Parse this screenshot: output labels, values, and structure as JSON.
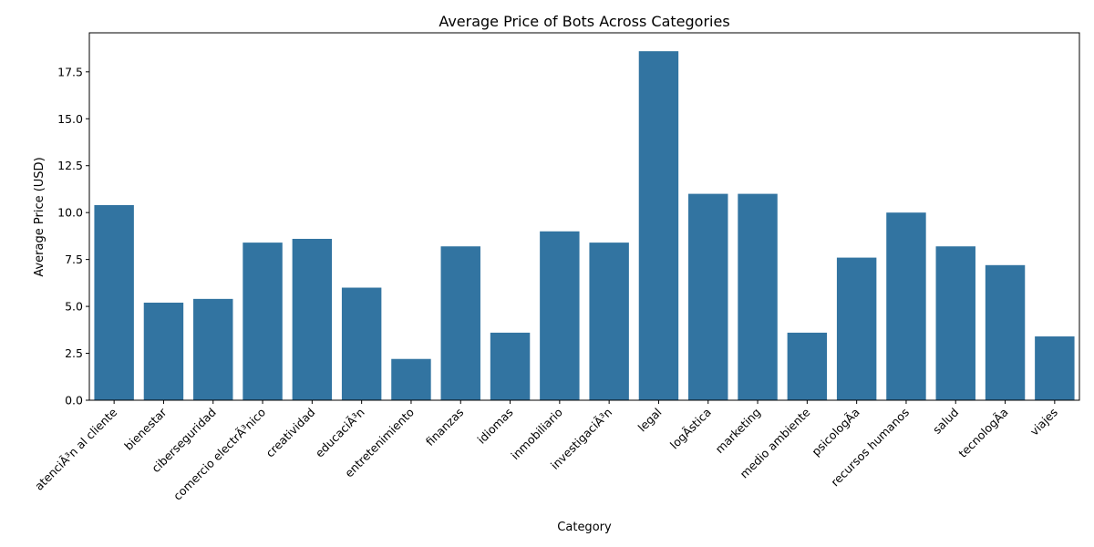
{
  "chart_data": {
    "type": "bar",
    "title": "Average Price of Bots Across Categories",
    "xlabel": "Category",
    "ylabel": "Average Price (USD)",
    "ylim": [
      0,
      19.58
    ],
    "yticks": [
      "0.0",
      "2.5",
      "5.0",
      "7.5",
      "10.0",
      "12.5",
      "15.0",
      "17.5"
    ],
    "grid": false,
    "bar_color": "#3274a1",
    "categories": [
      "atenciÃ³n al cliente",
      "bienestar",
      "ciberseguridad",
      "comercio electrÃ³nico",
      "creatividad",
      "educaciÃ³n",
      "entretenimiento",
      "finanzas",
      "idiomas",
      "inmobiliario",
      "investigaciÃ³n",
      "legal",
      "logÃ­stica",
      "marketing",
      "medio ambiente",
      "psicologÃ­a",
      "recursos humanos",
      "salud",
      "tecnologÃ­a",
      "viajes"
    ],
    "values": [
      10.4,
      5.2,
      5.4,
      8.4,
      8.6,
      6.0,
      2.2,
      8.2,
      3.6,
      9.0,
      8.4,
      18.6,
      11.0,
      11.0,
      3.6,
      7.6,
      10.0,
      8.2,
      7.2,
      3.4
    ]
  }
}
